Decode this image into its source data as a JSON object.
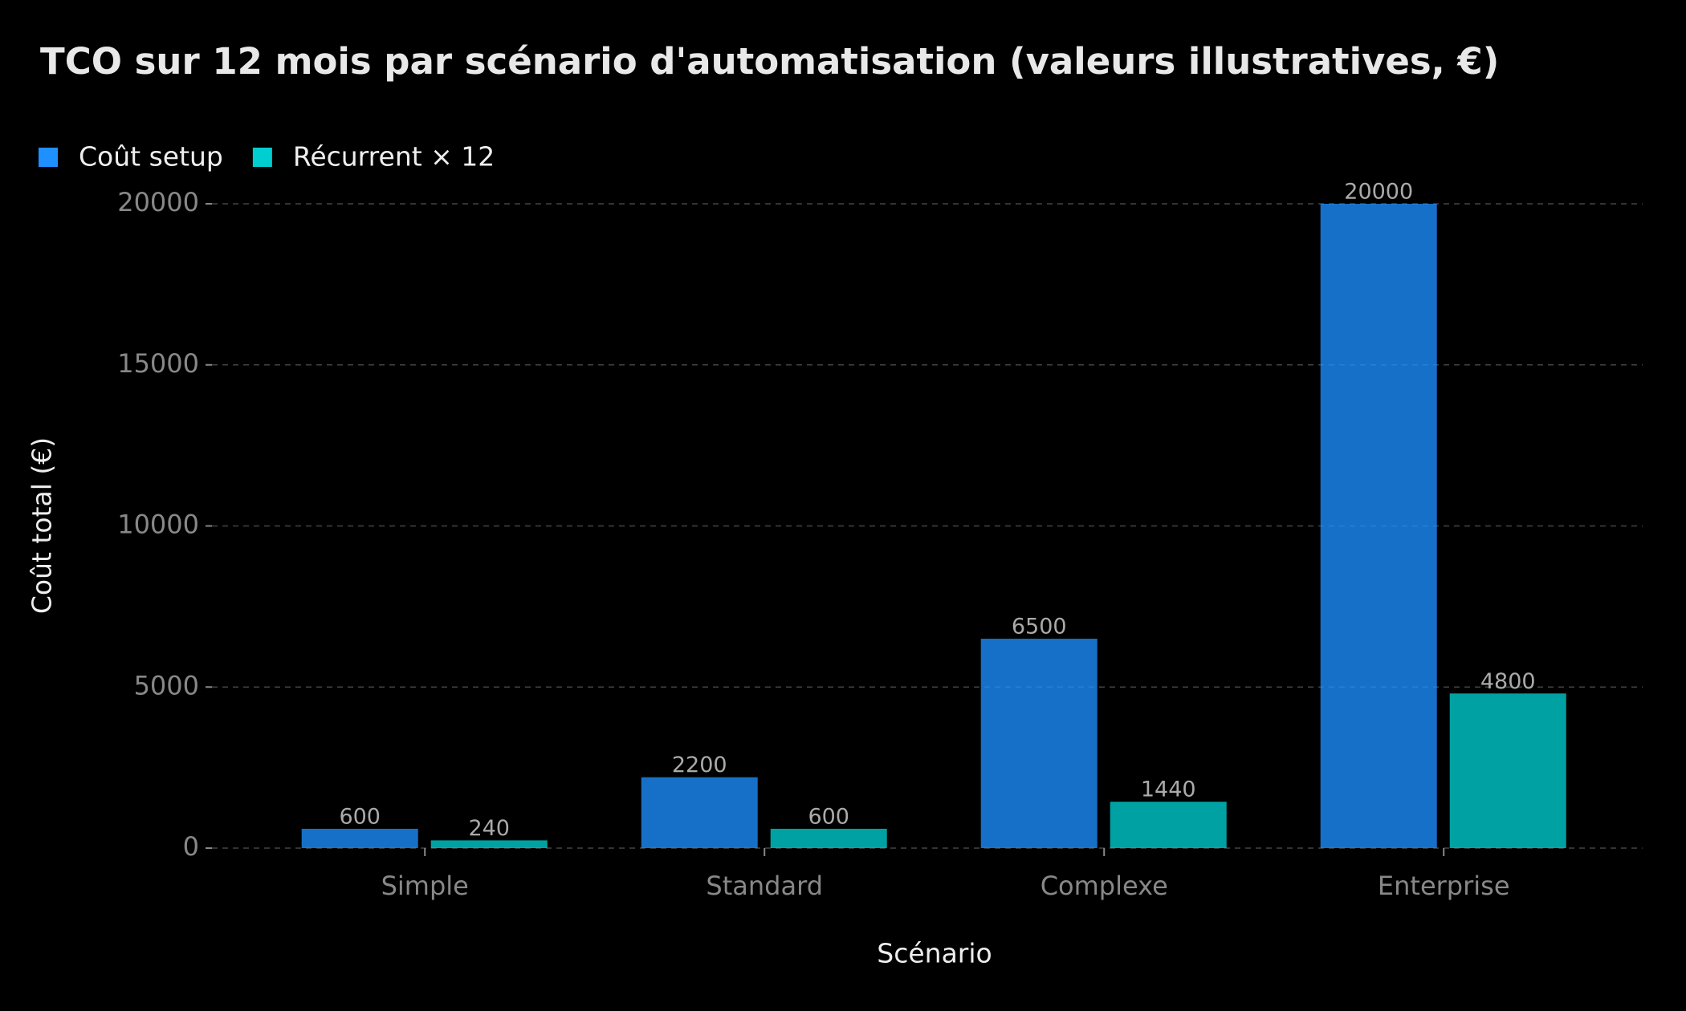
{
  "chart_data": {
    "type": "bar",
    "title": "TCO sur 12 mois par scénario d'automatisation (valeurs illustratives, €)",
    "x_label": "Scénario",
    "y_label": "Coût total (€)",
    "categories": [
      "Simple",
      "Standard",
      "Complexe",
      "Enterprise"
    ],
    "series": [
      {
        "name": "Coût setup",
        "color": "#1e90ff",
        "values": [
          600,
          2200,
          6500,
          20000
        ]
      },
      {
        "name": "Récurrent × 12",
        "color": "#00ced1",
        "values": [
          240,
          600,
          1440,
          4800
        ]
      }
    ],
    "ylim": [
      0,
      20000
    ],
    "yticks": [
      0,
      5000,
      10000,
      15000,
      20000
    ],
    "grid": true,
    "legend": "top-left"
  }
}
